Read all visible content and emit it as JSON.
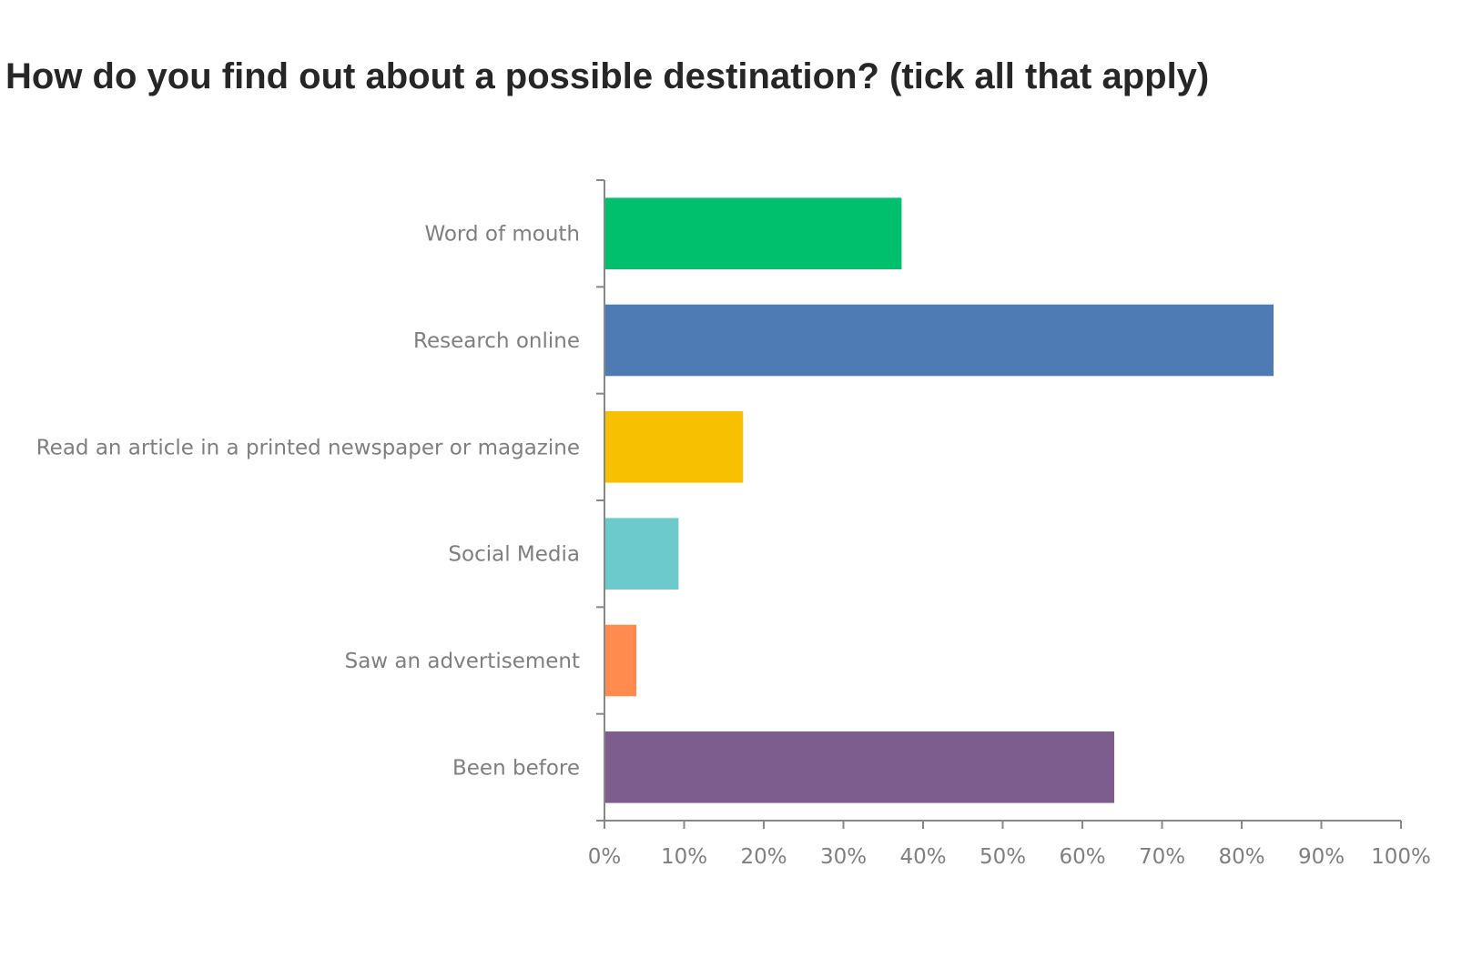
{
  "chart_data": {
    "type": "bar",
    "orientation": "horizontal",
    "title": "How do you find out about a possible destination? (tick all that apply)",
    "xlabel": "",
    "ylabel": "",
    "categories": [
      "Word of mouth",
      "Research online",
      "Read an article in a printed newspaper or magazine",
      "Social Media",
      "Saw an advertisement",
      "Been before"
    ],
    "values": [
      37.3,
      84,
      17.4,
      9.3,
      4,
      64
    ],
    "colors": [
      "#00c06e",
      "#4f7bb5",
      "#f7c000",
      "#6ccacd",
      "#ff8c4e",
      "#7d5d8e"
    ],
    "xlim": [
      0,
      100
    ],
    "x_ticks": [
      "0%",
      "10%",
      "20%",
      "30%",
      "40%",
      "50%",
      "60%",
      "70%",
      "80%",
      "90%",
      "100%"
    ],
    "grid": false,
    "legend": "none"
  }
}
